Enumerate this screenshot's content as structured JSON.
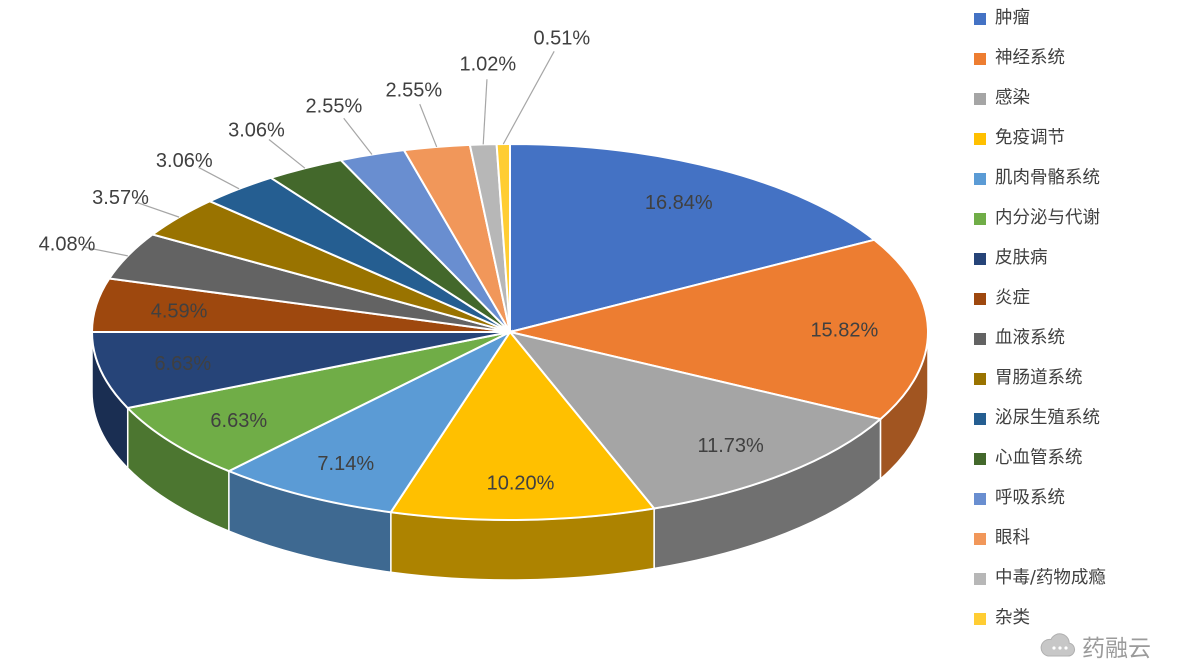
{
  "chart_data": {
    "type": "pie",
    "style": "3d",
    "title": "",
    "legend_position": "right",
    "data_label_format": "0.00%",
    "direction": "clockwise",
    "start_angle_deg": 0,
    "categories": [
      "肿瘤",
      "神经系统",
      "感染",
      "免疫调节",
      "肌肉骨骼系统",
      "内分泌与代谢",
      "皮肤病",
      "炎症",
      "血液系统",
      "胃肠道系统",
      "泌尿生殖系统",
      "心血管系统",
      "呼吸系统",
      "眼科",
      "中毒/药物成瘾",
      "杂类"
    ],
    "values": [
      16.84,
      15.82,
      11.73,
      10.2,
      7.14,
      6.63,
      6.63,
      4.59,
      4.08,
      3.57,
      3.06,
      3.06,
      2.55,
      2.55,
      1.02,
      0.51
    ],
    "value_labels": [
      "16.84%",
      "15.82%",
      "11.73%",
      "10.20%",
      "7.14%",
      "6.63%",
      "6.63%",
      "4.59%",
      "4.08%",
      "3.57%",
      "3.06%",
      "3.06%",
      "2.55%",
      "2.55%",
      "1.02%",
      "0.51%"
    ],
    "colors": [
      "#4472C4",
      "#ED7D31",
      "#A5A5A5",
      "#FFC000",
      "#5B9BD5",
      "#70AD47",
      "#264478",
      "#9E480E",
      "#636363",
      "#997300",
      "#255E91",
      "#43682B",
      "#698ED0",
      "#F1975A",
      "#B7B7B7",
      "#FFCD33"
    ],
    "label_color": "#404040",
    "leader_line_color": "#A6A6A6",
    "background": "#FFFFFF"
  },
  "watermark": {
    "text": "药融云"
  }
}
